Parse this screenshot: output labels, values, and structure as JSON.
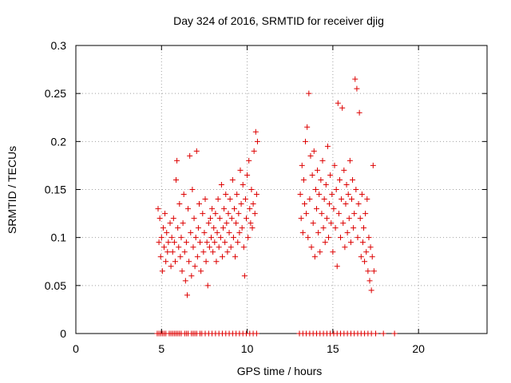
{
  "chart_data": {
    "type": "scatter",
    "title": "Day 324 of 2016, SRMTID for receiver djig",
    "xlabel": "GPS time / hours",
    "ylabel": "SRMTID / TECUs",
    "xlim": [
      0,
      24
    ],
    "ylim": [
      0,
      0.3
    ],
    "xticks": [
      0,
      5,
      10,
      15,
      20
    ],
    "yticks": [
      0,
      0.05,
      0.1,
      0.15,
      0.2,
      0.25,
      0.3
    ],
    "xtick_labels": [
      "0",
      "5",
      "10",
      "15",
      "20"
    ],
    "ytick_labels": [
      "0",
      "0.05",
      "0.1",
      "0.15",
      "0.2",
      "0.25",
      "0.3"
    ],
    "grid": true,
    "grid_style": "dotted",
    "marker": "+",
    "colors": {
      "series": "#dd0000",
      "grid": "#a0a0a0",
      "axes": "#000000"
    },
    "series": [
      {
        "name": "",
        "points": [
          [
            4.8,
            0.13
          ],
          [
            4.85,
            0.095
          ],
          [
            4.9,
            0.12
          ],
          [
            4.95,
            0.08
          ],
          [
            5.0,
            0.1
          ],
          [
            5.05,
            0.065
          ],
          [
            5.1,
            0.11
          ],
          [
            5.15,
            0.09
          ],
          [
            5.2,
            0.125
          ],
          [
            5.25,
            0.075
          ],
          [
            5.3,
            0.105
          ],
          [
            5.35,
            0.085
          ],
          [
            5.4,
            0.095
          ],
          [
            5.5,
            0.115
          ],
          [
            5.55,
            0.07
          ],
          [
            5.6,
            0.1
          ],
          [
            5.65,
            0.085
          ],
          [
            5.7,
            0.12
          ],
          [
            5.75,
            0.095
          ],
          [
            5.8,
            0.075
          ],
          [
            5.85,
            0.16
          ],
          [
            5.9,
            0.18
          ],
          [
            5.95,
            0.11
          ],
          [
            6.0,
            0.09
          ],
          [
            6.05,
            0.135
          ],
          [
            6.1,
            0.08
          ],
          [
            6.15,
            0.1
          ],
          [
            6.2,
            0.065
          ],
          [
            6.25,
            0.115
          ],
          [
            6.3,
            0.145
          ],
          [
            6.35,
            0.085
          ],
          [
            6.4,
            0.055
          ],
          [
            6.45,
            0.095
          ],
          [
            6.5,
            0.04
          ],
          [
            6.55,
            0.13
          ],
          [
            6.6,
            0.075
          ],
          [
            6.65,
            0.185
          ],
          [
            6.7,
            0.105
          ],
          [
            6.75,
            0.06
          ],
          [
            6.8,
            0.15
          ],
          [
            6.85,
            0.09
          ],
          [
            6.9,
            0.12
          ],
          [
            6.95,
            0.07
          ],
          [
            7.0,
            0.1
          ],
          [
            7.05,
            0.19
          ],
          [
            7.1,
            0.08
          ],
          [
            7.15,
            0.11
          ],
          [
            7.2,
            0.135
          ],
          [
            7.25,
            0.095
          ],
          [
            7.3,
            0.065
          ],
          [
            7.4,
            0.125
          ],
          [
            7.45,
            0.085
          ],
          [
            7.5,
            0.105
          ],
          [
            7.55,
            0.14
          ],
          [
            7.6,
            0.075
          ],
          [
            7.65,
            0.095
          ],
          [
            7.7,
            0.05
          ],
          [
            7.75,
            0.115
          ],
          [
            7.8,
            0.09
          ],
          [
            7.85,
            0.12
          ],
          [
            7.9,
            0.1
          ],
          [
            7.95,
            0.13
          ],
          [
            8.0,
            0.085
          ],
          [
            8.05,
            0.11
          ],
          [
            8.1,
            0.095
          ],
          [
            8.15,
            0.125
          ],
          [
            8.2,
            0.075
          ],
          [
            8.25,
            0.105
          ],
          [
            8.3,
            0.14
          ],
          [
            8.35,
            0.09
          ],
          [
            8.4,
            0.12
          ],
          [
            8.45,
            0.1
          ],
          [
            8.5,
            0.155
          ],
          [
            8.55,
            0.08
          ],
          [
            8.6,
            0.11
          ],
          [
            8.65,
            0.13
          ],
          [
            8.7,
            0.095
          ],
          [
            8.75,
            0.145
          ],
          [
            8.8,
            0.115
          ],
          [
            8.85,
            0.085
          ],
          [
            8.9,
            0.125
          ],
          [
            8.95,
            0.105
          ],
          [
            9.0,
            0.14
          ],
          [
            9.05,
            0.09
          ],
          [
            9.1,
            0.12
          ],
          [
            9.15,
            0.16
          ],
          [
            9.2,
            0.1
          ],
          [
            9.25,
            0.13
          ],
          [
            9.3,
            0.08
          ],
          [
            9.35,
            0.115
          ],
          [
            9.4,
            0.145
          ],
          [
            9.45,
            0.095
          ],
          [
            9.5,
            0.125
          ],
          [
            9.55,
            0.105
          ],
          [
            9.6,
            0.17
          ],
          [
            9.65,
            0.135
          ],
          [
            9.7,
            0.11
          ],
          [
            9.75,
            0.155
          ],
          [
            9.8,
            0.09
          ],
          [
            9.85,
            0.06
          ],
          [
            9.9,
            0.14
          ],
          [
            9.95,
            0.12
          ],
          [
            10.0,
            0.165
          ],
          [
            10.05,
            0.1
          ],
          [
            10.1,
            0.18
          ],
          [
            10.15,
            0.13
          ],
          [
            10.2,
            0.115
          ],
          [
            10.25,
            0.15
          ],
          [
            10.3,
            0.11
          ],
          [
            10.35,
            0.135
          ],
          [
            10.4,
            0.19
          ],
          [
            10.45,
            0.125
          ],
          [
            10.5,
            0.21
          ],
          [
            10.55,
            0.145
          ],
          [
            10.6,
            0.2
          ],
          [
            13.1,
            0.145
          ],
          [
            13.15,
            0.12
          ],
          [
            13.2,
            0.175
          ],
          [
            13.25,
            0.105
          ],
          [
            13.3,
            0.16
          ],
          [
            13.35,
            0.135
          ],
          [
            13.4,
            0.2
          ],
          [
            13.45,
            0.125
          ],
          [
            13.5,
            0.215
          ],
          [
            13.55,
            0.1
          ],
          [
            13.6,
            0.25
          ],
          [
            13.65,
            0.14
          ],
          [
            13.7,
            0.185
          ],
          [
            13.75,
            0.09
          ],
          [
            13.8,
            0.165
          ],
          [
            13.85,
            0.115
          ],
          [
            13.9,
            0.19
          ],
          [
            13.95,
            0.08
          ],
          [
            14.0,
            0.15
          ],
          [
            14.05,
            0.13
          ],
          [
            14.1,
            0.17
          ],
          [
            14.15,
            0.105
          ],
          [
            14.2,
            0.145
          ],
          [
            14.25,
            0.085
          ],
          [
            14.3,
            0.16
          ],
          [
            14.35,
            0.125
          ],
          [
            14.4,
            0.18
          ],
          [
            14.45,
            0.11
          ],
          [
            14.5,
            0.14
          ],
          [
            14.55,
            0.095
          ],
          [
            14.6,
            0.155
          ],
          [
            14.65,
            0.12
          ],
          [
            14.7,
            0.195
          ],
          [
            14.75,
            0.1
          ],
          [
            14.8,
            0.135
          ],
          [
            14.85,
            0.165
          ],
          [
            14.9,
            0.115
          ],
          [
            14.95,
            0.145
          ],
          [
            15.0,
            0.085
          ],
          [
            15.05,
            0.13
          ],
          [
            15.1,
            0.175
          ],
          [
            15.15,
            0.11
          ],
          [
            15.2,
            0.15
          ],
          [
            15.25,
            0.07
          ],
          [
            15.3,
            0.24
          ],
          [
            15.35,
            0.125
          ],
          [
            15.4,
            0.16
          ],
          [
            15.45,
            0.1
          ],
          [
            15.5,
            0.14
          ],
          [
            15.55,
            0.235
          ],
          [
            15.6,
            0.115
          ],
          [
            15.65,
            0.17
          ],
          [
            15.7,
            0.09
          ],
          [
            15.75,
            0.135
          ],
          [
            15.8,
            0.155
          ],
          [
            15.85,
            0.105
          ],
          [
            15.9,
            0.145
          ],
          [
            15.95,
            0.12
          ],
          [
            16.0,
            0.18
          ],
          [
            16.05,
            0.095
          ],
          [
            16.1,
            0.14
          ],
          [
            16.15,
            0.16
          ],
          [
            16.2,
            0.11
          ],
          [
            16.25,
            0.125
          ],
          [
            16.3,
            0.265
          ],
          [
            16.35,
            0.15
          ],
          [
            16.4,
            0.255
          ],
          [
            16.45,
            0.1
          ],
          [
            16.5,
            0.135
          ],
          [
            16.55,
            0.23
          ],
          [
            16.6,
            0.12
          ],
          [
            16.65,
            0.08
          ],
          [
            16.7,
            0.145
          ],
          [
            16.75,
            0.095
          ],
          [
            16.8,
            0.11
          ],
          [
            16.85,
            0.075
          ],
          [
            16.9,
            0.125
          ],
          [
            16.95,
            0.085
          ],
          [
            17.0,
            0.14
          ],
          [
            17.05,
            0.065
          ],
          [
            17.1,
            0.1
          ],
          [
            17.15,
            0.055
          ],
          [
            17.2,
            0.09
          ],
          [
            17.25,
            0.045
          ],
          [
            17.3,
            0.08
          ],
          [
            17.35,
            0.175
          ],
          [
            17.4,
            0.065
          ]
        ]
      },
      {
        "name": "",
        "points": [
          [
            4.75,
            0
          ],
          [
            4.85,
            0
          ],
          [
            4.95,
            0
          ],
          [
            5.05,
            0
          ],
          [
            5.15,
            0
          ],
          [
            5.25,
            0
          ],
          [
            5.45,
            0
          ],
          [
            5.55,
            0
          ],
          [
            5.65,
            0
          ],
          [
            5.75,
            0
          ],
          [
            5.85,
            0
          ],
          [
            5.95,
            0
          ],
          [
            6.05,
            0
          ],
          [
            6.15,
            0
          ],
          [
            6.35,
            0
          ],
          [
            6.45,
            0
          ],
          [
            6.55,
            0
          ],
          [
            6.75,
            0
          ],
          [
            6.85,
            0
          ],
          [
            6.95,
            0
          ],
          [
            7.05,
            0
          ],
          [
            7.25,
            0
          ],
          [
            7.35,
            0
          ],
          [
            7.55,
            0
          ],
          [
            7.75,
            0
          ],
          [
            7.95,
            0
          ],
          [
            8.15,
            0
          ],
          [
            8.35,
            0
          ],
          [
            8.55,
            0
          ],
          [
            8.75,
            0
          ],
          [
            8.95,
            0
          ],
          [
            9.15,
            0
          ],
          [
            9.35,
            0
          ],
          [
            9.55,
            0
          ],
          [
            9.75,
            0
          ],
          [
            9.95,
            0
          ],
          [
            10.15,
            0
          ],
          [
            10.35,
            0
          ],
          [
            10.55,
            0
          ],
          [
            13.05,
            0
          ],
          [
            13.25,
            0
          ],
          [
            13.45,
            0
          ],
          [
            13.65,
            0
          ],
          [
            13.85,
            0
          ],
          [
            14.05,
            0
          ],
          [
            14.25,
            0
          ],
          [
            14.45,
            0
          ],
          [
            14.65,
            0
          ],
          [
            14.85,
            0
          ],
          [
            15.05,
            0
          ],
          [
            15.25,
            0
          ],
          [
            15.45,
            0
          ],
          [
            15.65,
            0
          ],
          [
            15.85,
            0
          ],
          [
            16.05,
            0
          ],
          [
            16.25,
            0
          ],
          [
            16.45,
            0
          ],
          [
            16.65,
            0
          ],
          [
            16.85,
            0
          ],
          [
            17.05,
            0
          ],
          [
            17.25,
            0
          ],
          [
            17.5,
            0
          ],
          [
            17.95,
            0
          ],
          [
            18.6,
            0
          ]
        ]
      }
    ]
  }
}
